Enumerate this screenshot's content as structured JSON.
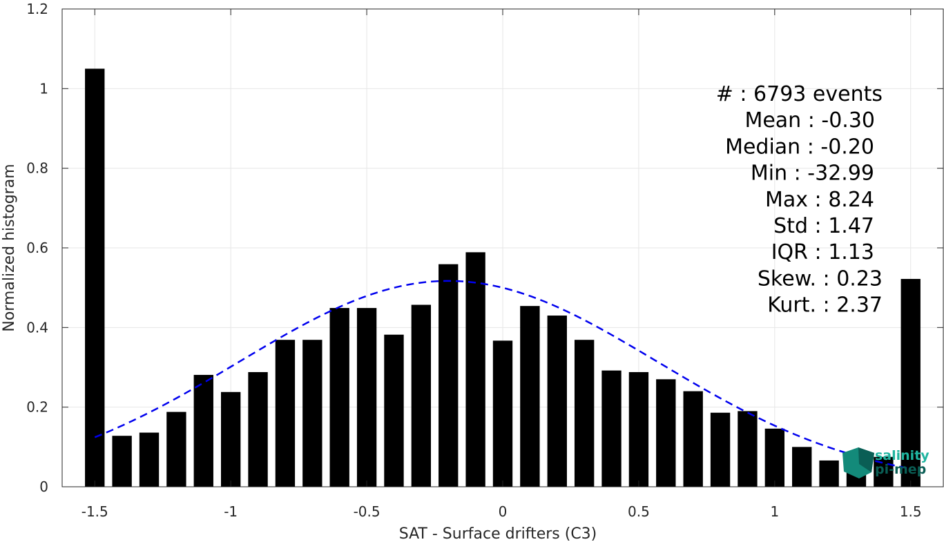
{
  "chart_data": {
    "type": "bar",
    "title": "",
    "xlabel": "SAT - Surface drifters (C3)",
    "ylabel": "Normalized histogram",
    "xlim": [
      -1.62,
      1.62
    ],
    "ylim": [
      0,
      1.2
    ],
    "grid": true,
    "x_ticks": [
      -1.5,
      -1,
      -0.5,
      0,
      0.5,
      1,
      1.5
    ],
    "x_tick_labels": [
      "-1.5",
      "-1",
      "-0.5",
      "0",
      "0.5",
      "1",
      "1.5"
    ],
    "y_ticks": [
      0,
      0.2,
      0.4,
      0.6,
      0.8,
      1,
      1.2
    ],
    "y_tick_labels": [
      "0",
      "0.2",
      "0.4",
      "0.6",
      "0.8",
      "1",
      "1.2"
    ],
    "bar_color": "#000000",
    "bin_centers": [
      -1.5,
      -1.4,
      -1.3,
      -1.2,
      -1.1,
      -1.0,
      -0.9,
      -0.8,
      -0.7,
      -0.6,
      -0.5,
      -0.4,
      -0.3,
      -0.2,
      -0.1,
      0.0,
      0.1,
      0.2,
      0.3,
      0.4,
      0.5,
      0.6,
      0.7,
      0.8,
      0.9,
      1.0,
      1.1,
      1.2,
      1.3,
      1.4,
      1.5
    ],
    "values": [
      1.05,
      0.128,
      0.136,
      0.188,
      0.281,
      0.238,
      0.288,
      0.369,
      0.369,
      0.449,
      0.449,
      0.382,
      0.457,
      0.559,
      0.589,
      0.367,
      0.454,
      0.43,
      0.369,
      0.292,
      0.288,
      0.27,
      0.24,
      0.186,
      0.19,
      0.146,
      0.1,
      0.066,
      0.072,
      0.075,
      0.522
    ],
    "fit_curve": {
      "style": "dashed",
      "color": "#0000ee",
      "mean": -0.2,
      "std": 0.77,
      "peak": 0.517,
      "x_range": [
        -1.5,
        1.5
      ]
    },
    "stats_text": [
      "#  : 6793 events",
      "Mean : -0.30",
      "Median : -0.20",
      "Min : -32.99",
      "Max : 8.24",
      "Std : 1.47",
      "IQR : 1.13",
      "Skew. : 0.23",
      "Kurt. : 2.37"
    ]
  },
  "logo": {
    "line1": "salinity",
    "line2": "pi-mep",
    "color1": "#1fb5a0",
    "color2": "#0a5e55"
  }
}
